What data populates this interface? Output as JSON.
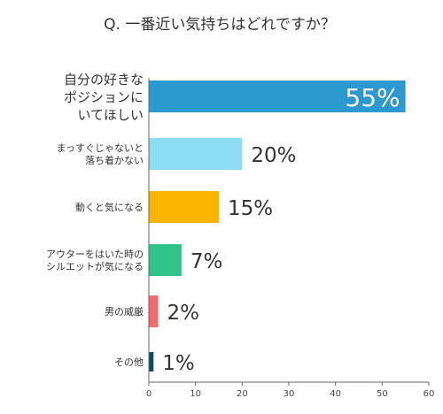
{
  "chart_data": {
    "type": "bar",
    "orientation": "horizontal",
    "title": "Q. 一番近い気持ちはどれですか？",
    "categories": [
      [
        "自分の好きな",
        "ポジションに",
        "いてほしい"
      ],
      [
        "まっすぐじゃないと",
        "落ち着かない"
      ],
      [
        "動くと気になる"
      ],
      [
        "アウターをはいた時の",
        "シルエットが気になる"
      ],
      [
        "男の威厳"
      ],
      [
        "その他"
      ]
    ],
    "values": [
      55,
      20,
      15,
      7,
      2,
      1
    ],
    "value_labels": [
      "55%",
      "20%",
      "15%",
      "7%",
      "2%",
      "1%"
    ],
    "colors": [
      "#2a9ad0",
      "#8dddf5",
      "#fbb400",
      "#2ec48a",
      "#f56b6b",
      "#0f4d5c"
    ],
    "xlim": [
      0,
      60
    ],
    "xticks": [
      0,
      10,
      20,
      30,
      40,
      50,
      60
    ],
    "grid": false,
    "legend": "none"
  }
}
